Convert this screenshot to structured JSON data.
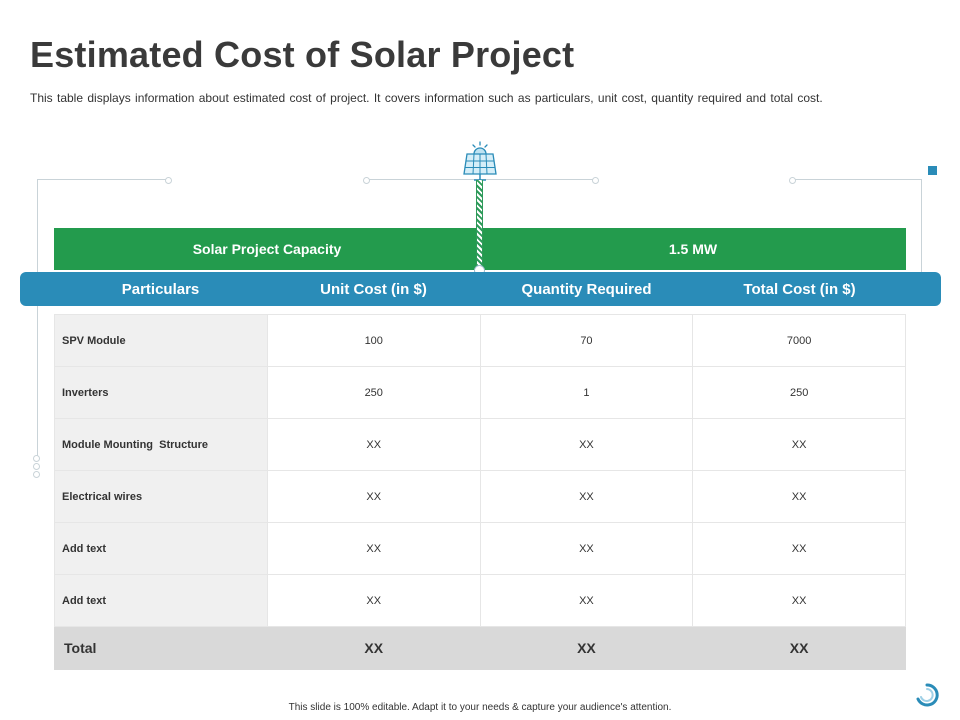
{
  "title": "Estimated Cost of Solar Project",
  "description": "This table displays information about estimated cost of project. It covers information such as particulars, unit cost, quantity required and total cost.",
  "capacity": {
    "label": "Solar Project Capacity",
    "value": "1.5 MW"
  },
  "columns": [
    "Particulars",
    "Unit Cost (in $)",
    "Quantity Required",
    "Total Cost (in $)"
  ],
  "rows": [
    [
      "SPV Module",
      "100",
      "70",
      "7000"
    ],
    [
      "Inverters",
      "250",
      "1",
      "250"
    ],
    [
      "Module Mounting  Structure",
      "XX",
      "XX",
      "XX"
    ],
    [
      "Electrical wires",
      "XX",
      "XX",
      "XX"
    ],
    [
      "Add text",
      "XX",
      "XX",
      "XX"
    ],
    [
      "Add text",
      "XX",
      "XX",
      "XX"
    ]
  ],
  "total": [
    "Total",
    "XX",
    "XX",
    "XX"
  ],
  "footer": "This slide is 100% editable. Adapt it to your needs & capture your audience's attention.",
  "colors": {
    "green": "#239b4d",
    "blue": "#2a8cb8",
    "gray": "#d9d9d9"
  },
  "icons": {
    "solar": "solar-panel-icon",
    "logo": "brand-logo-icon"
  }
}
